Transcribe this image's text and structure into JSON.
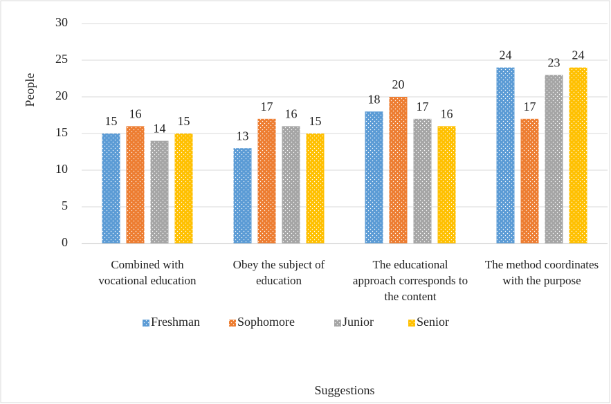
{
  "chart_data": {
    "type": "bar",
    "x_label": "Suggestions",
    "y_label": "People",
    "categories": [
      "Combined with vocational education",
      "Obey the subject of education",
      "The educational approach corresponds to the content",
      "The method coordinates with the purpose"
    ],
    "series": [
      {
        "name": "Freshman",
        "color": "#5b9bd5",
        "values": [
          15,
          13,
          18,
          24
        ]
      },
      {
        "name": "Sophomore",
        "color": "#ed7d31",
        "values": [
          16,
          17,
          20,
          17
        ]
      },
      {
        "name": "Junior",
        "color": "#a5a5a5",
        "values": [
          14,
          16,
          17,
          23
        ]
      },
      {
        "name": "Senior",
        "color": "#ffc000",
        "values": [
          15,
          15,
          16,
          24
        ]
      }
    ],
    "ylim": [
      0,
      30
    ],
    "yticks": [
      0,
      5,
      10,
      15,
      20,
      25,
      30
    ],
    "grid": true,
    "legend": "bottom"
  }
}
